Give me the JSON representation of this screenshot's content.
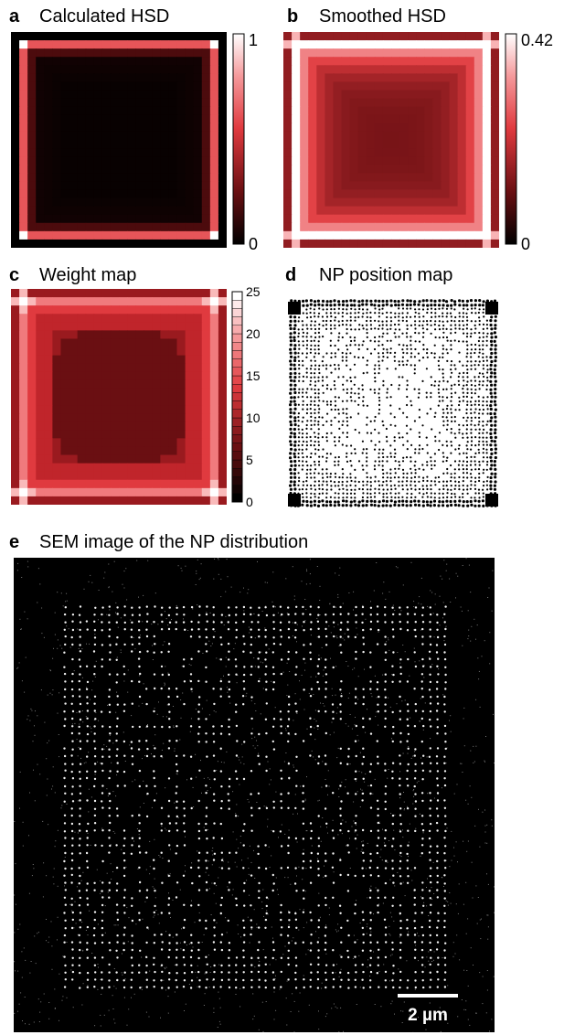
{
  "panels": {
    "a": {
      "letter": "a",
      "title": "Calculated HSD",
      "colorbar": {
        "max": "1",
        "min": "0"
      }
    },
    "b": {
      "letter": "b",
      "title": "Smoothed HSD",
      "colorbar": {
        "max": "0.42",
        "min": "0"
      }
    },
    "c": {
      "letter": "c",
      "title": "Weight map",
      "colorbar": {
        "ticks": [
          "25",
          "20",
          "15",
          "10",
          "5",
          "0"
        ]
      }
    },
    "d": {
      "letter": "d",
      "title": "NP position map"
    },
    "e": {
      "letter": "e",
      "title": "SEM image of the NP distribution",
      "scale_bar": "2 µm"
    }
  },
  "colors": {
    "heat_dark": "#000000",
    "heat_mid": "#c0252b",
    "heat_bright": "#f2585d",
    "heat_white": "#ffffff"
  }
}
